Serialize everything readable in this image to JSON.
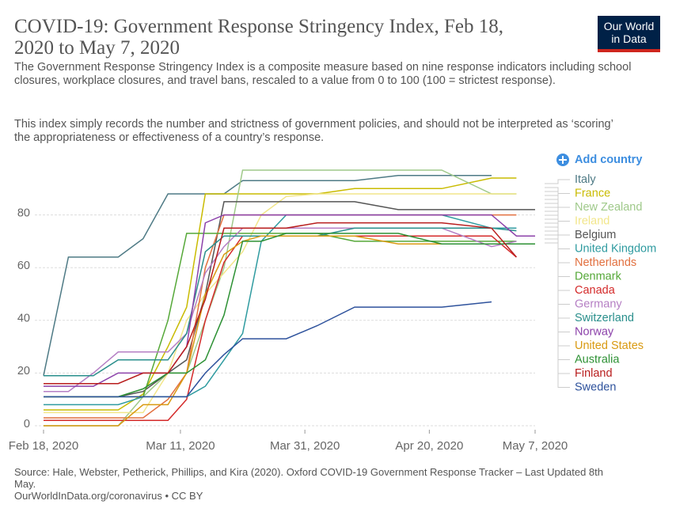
{
  "chart_data": {
    "type": "line",
    "title": "COVID-19: Government Response Stringency Index, Feb 18, 2020 to May 7, 2020",
    "subtitle": [
      "The Government Response Stringency Index is a composite measure based on nine response indicators including school closures, workplace closures, and travel bans, rescaled to a value from 0 to 100 (100 = strictest response).",
      "This index simply records the number and strictness of government policies, and should not be interpreted as ‘scoring’ the appropriateness or effectiveness of a country’s response."
    ],
    "source": "Source: Hale, Webster, Petherick, Phillips, and Kira (2020). Oxford COVID-19 Government Response Tracker – Last Updated 8th May.",
    "url": "OurWorldInData.org/coronavirus • CC BY",
    "logo": [
      "Our World",
      "in Data"
    ],
    "add_button": "Add country",
    "x": [
      "2020-02-18",
      "2020-02-22",
      "2020-02-26",
      "2020-03-01",
      "2020-03-05",
      "2020-03-09",
      "2020-03-12",
      "2020-03-15",
      "2020-03-18",
      "2020-03-21",
      "2020-03-24",
      "2020-03-28",
      "2020-04-02",
      "2020-04-08",
      "2020-04-15",
      "2020-04-22",
      "2020-04-30",
      "2020-05-04",
      "2020-05-07"
    ],
    "xlim": [
      "2020-02-18",
      "2020-05-07"
    ],
    "xticks": [
      {
        "value": "2020-02-18",
        "label": "Feb 18, 2020"
      },
      {
        "value": "2020-03-11",
        "label": "Mar 11, 2020"
      },
      {
        "value": "2020-03-31",
        "label": "Mar 31, 2020"
      },
      {
        "value": "2020-04-20",
        "label": "Apr 20, 2020"
      },
      {
        "value": "2020-05-07",
        "label": "May 7, 2020"
      }
    ],
    "ylim": [
      0,
      100
    ],
    "yticks": [
      0,
      20,
      40,
      60,
      80
    ],
    "grid": true,
    "series": [
      {
        "name": "Italy",
        "color": "#4e7a85",
        "values": [
          19,
          64,
          64,
          64,
          71,
          88,
          88,
          88,
          88,
          93,
          93,
          93,
          93,
          93,
          95,
          95,
          95,
          null,
          null
        ]
      },
      {
        "name": "France",
        "color": "#c9bb00",
        "values": [
          6,
          6,
          6,
          6,
          12,
          30,
          45,
          88,
          88,
          88,
          88,
          88,
          88,
          90,
          90,
          90,
          94,
          94,
          null
        ]
      },
      {
        "name": "New Zealand",
        "color": "#9fc98a",
        "values": [
          0,
          0,
          0,
          0,
          11,
          20,
          20,
          40,
          60,
          97,
          97,
          97,
          97,
          97,
          97,
          97,
          88,
          88,
          null
        ]
      },
      {
        "name": "Ireland",
        "color": "#f2e68a",
        "values": [
          5,
          5,
          5,
          5,
          5,
          20,
          40,
          50,
          58,
          66,
          80,
          87,
          88,
          88,
          88,
          88,
          88,
          88,
          null
        ]
      },
      {
        "name": "Belgium",
        "color": "#555555",
        "values": [
          11,
          11,
          11,
          11,
          13,
          20,
          25,
          50,
          85,
          85,
          85,
          85,
          85,
          85,
          82,
          82,
          82,
          82,
          82
        ]
      },
      {
        "name": "United Kingdom",
        "color": "#2f9ba0",
        "values": [
          8,
          8,
          8,
          8,
          11,
          11,
          11,
          15,
          25,
          35,
          70,
          80,
          80,
          80,
          80,
          80,
          75,
          75,
          null
        ]
      },
      {
        "name": "Netherlands",
        "color": "#e2703f",
        "values": [
          3,
          3,
          3,
          3,
          3,
          10,
          20,
          60,
          80,
          80,
          80,
          80,
          80,
          80,
          80,
          80,
          80,
          80,
          null
        ]
      },
      {
        "name": "Denmark",
        "color": "#55a838",
        "values": [
          11,
          11,
          11,
          11,
          11,
          40,
          73,
          73,
          73,
          73,
          73,
          73,
          73,
          70,
          70,
          70,
          70,
          70,
          null
        ]
      },
      {
        "name": "Canada",
        "color": "#d42a2a",
        "values": [
          2,
          2,
          2,
          2,
          2,
          2,
          10,
          40,
          62,
          72,
          72,
          72,
          72,
          72,
          72,
          72,
          72,
          64,
          null
        ]
      },
      {
        "name": "Germany",
        "color": "#b57fc4",
        "values": [
          13,
          13,
          20,
          28,
          28,
          28,
          35,
          58,
          68,
          75,
          75,
          75,
          75,
          75,
          75,
          75,
          68,
          70,
          null
        ]
      },
      {
        "name": "Switzerland",
        "color": "#2a8f8c",
        "values": [
          19,
          19,
          19,
          25,
          25,
          25,
          35,
          66,
          72,
          72,
          72,
          72,
          72,
          75,
          75,
          75,
          75,
          74,
          null
        ]
      },
      {
        "name": "Norway",
        "color": "#8c42aa",
        "values": [
          15,
          15,
          15,
          20,
          20,
          20,
          30,
          77,
          80,
          80,
          80,
          80,
          80,
          80,
          80,
          80,
          80,
          72,
          72
        ]
      },
      {
        "name": "United States",
        "color": "#d99a12",
        "values": [
          0,
          0,
          0,
          0,
          8,
          8,
          20,
          50,
          65,
          70,
          72,
          72,
          72,
          72,
          69,
          69,
          69,
          69,
          null
        ]
      },
      {
        "name": "Australia",
        "color": "#2d9134",
        "values": [
          11,
          11,
          11,
          11,
          14,
          20,
          20,
          25,
          42,
          70,
          70,
          73,
          73,
          73,
          73,
          69,
          69,
          69,
          69
        ]
      },
      {
        "name": "Finland",
        "color": "#b81d1d",
        "values": [
          16,
          16,
          16,
          16,
          20,
          20,
          30,
          48,
          75,
          75,
          75,
          75,
          77,
          77,
          77,
          77,
          75,
          64,
          null
        ]
      },
      {
        "name": "Sweden",
        "color": "#2e529c",
        "values": [
          11,
          11,
          11,
          11,
          11,
          11,
          11,
          20,
          27,
          33,
          33,
          33,
          38,
          45,
          45,
          45,
          47,
          null,
          null
        ]
      }
    ]
  }
}
